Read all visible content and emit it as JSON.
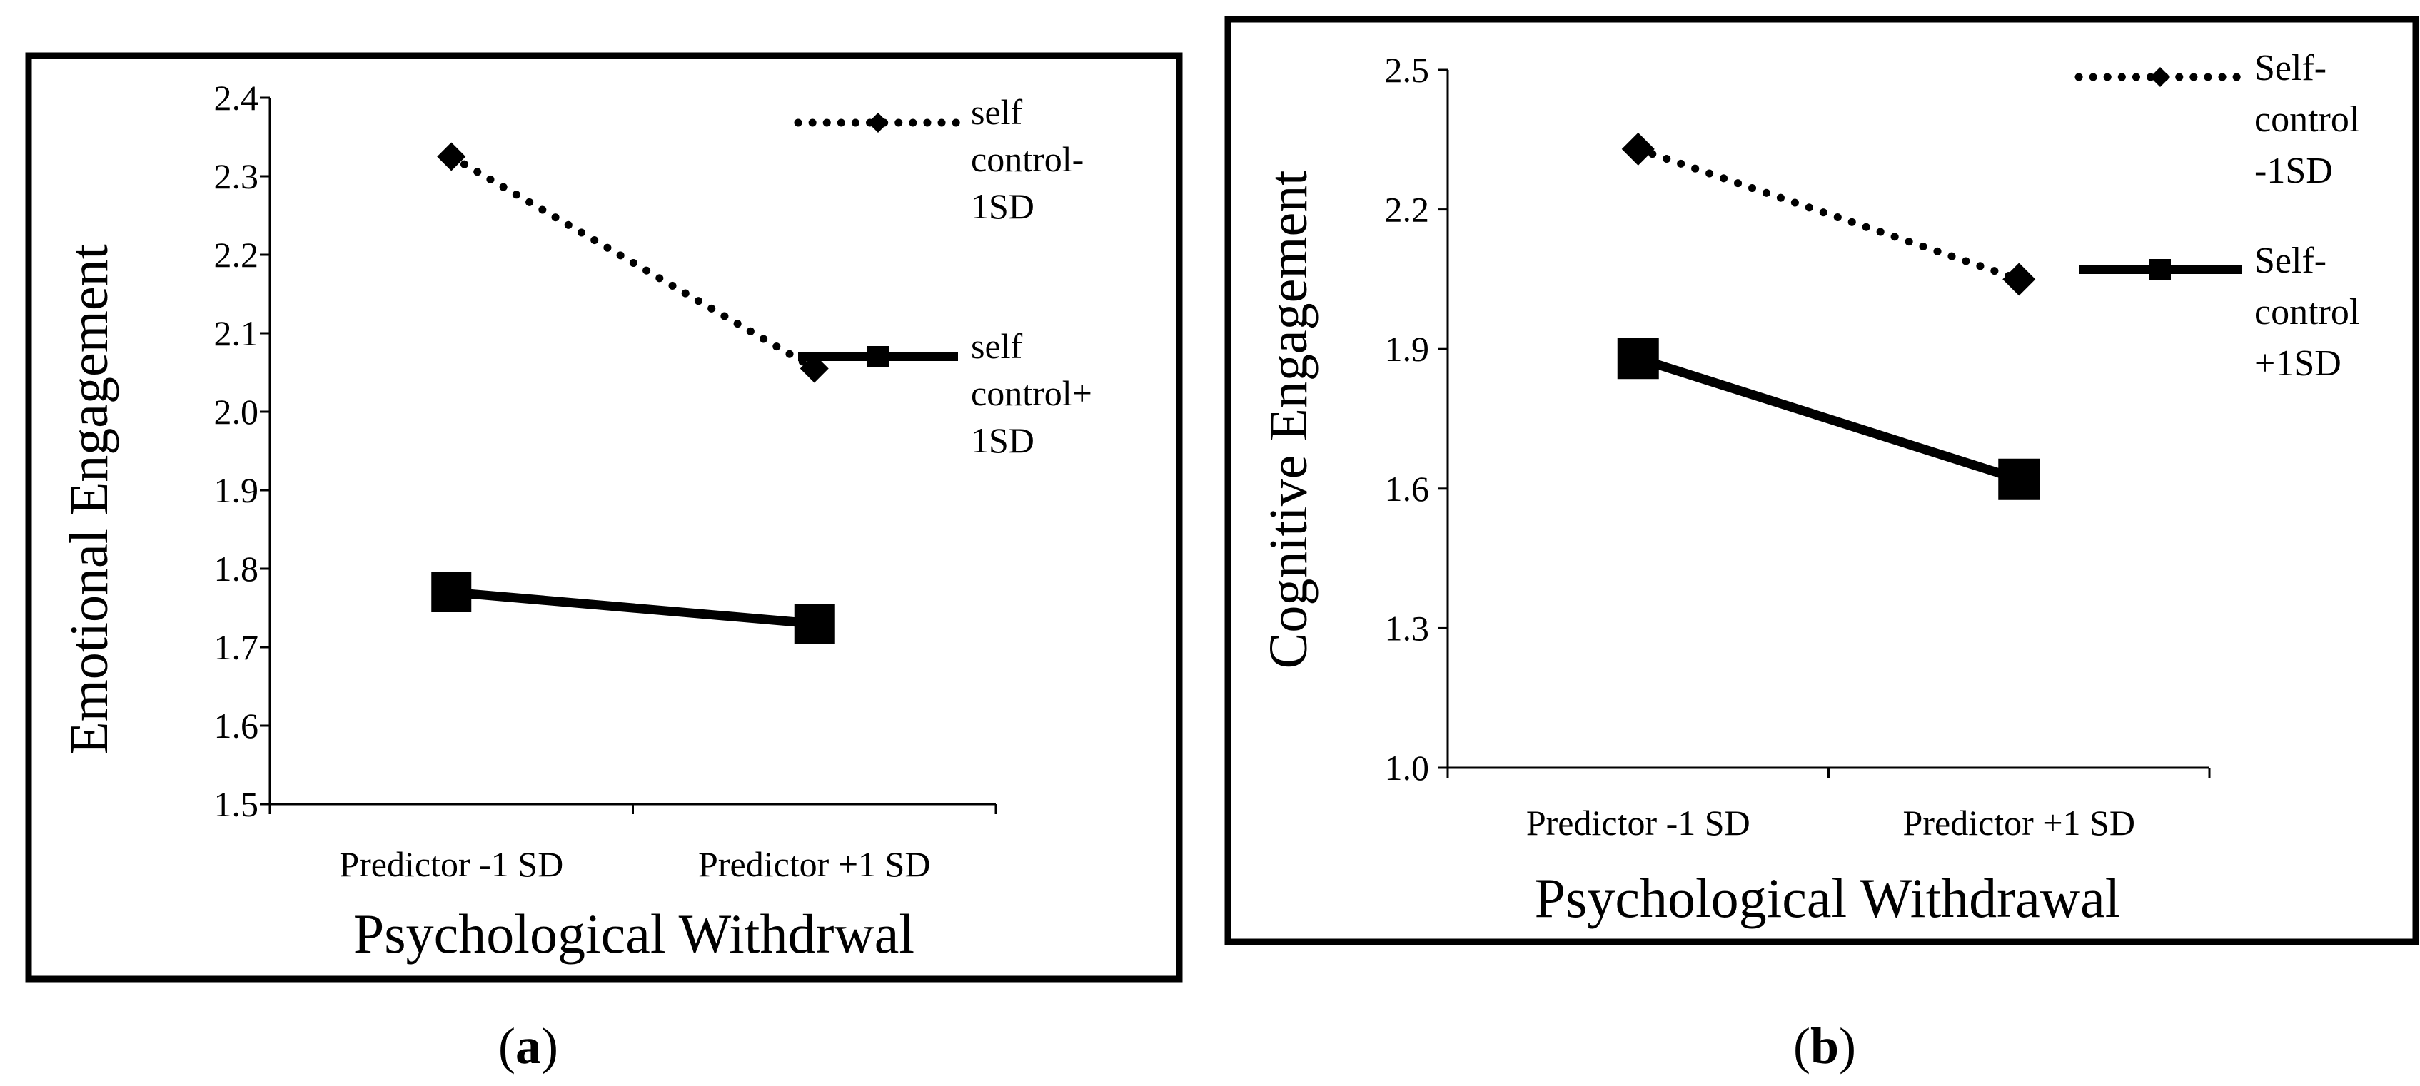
{
  "figure": {
    "panels": [
      {
        "caption_letter": "a",
        "caption_open": "(",
        "caption_close": ")",
        "tick_labels": [
          "1.5",
          "1.6",
          "1.7",
          "1.8",
          "1.9",
          "2.0",
          "2.1",
          "2.2",
          "2.3",
          "2.4"
        ],
        "legend": [
          {
            "lines": [
              "self",
              "control-",
              "1SD"
            ]
          },
          {
            "lines": [
              "self",
              "control+",
              "1SD"
            ]
          }
        ]
      },
      {
        "caption_letter": "b",
        "caption_open": "(",
        "caption_close": ")",
        "tick_labels": [
          "1.0",
          "1.3",
          "1.6",
          "1.9",
          "2.2",
          "2.5"
        ],
        "legend": [
          {
            "lines": [
              "Self-",
              "control",
              "-1SD"
            ]
          },
          {
            "lines": [
              "Self-",
              "control",
              "+1SD"
            ]
          }
        ]
      }
    ]
  },
  "chart_data": [
    {
      "type": "line",
      "title": "",
      "xlabel": "Psychological Withdrwal",
      "ylabel": "Emotional Engagement",
      "categories": [
        "Predictor -1 SD",
        "Predictor +1 SD"
      ],
      "ylim": [
        1.5,
        2.4
      ],
      "ytick_step": 0.1,
      "grid": false,
      "legend_position": "right",
      "series": [
        {
          "name": "self control-1SD",
          "values": [
            2.325,
            2.055
          ],
          "line_style": "dotted",
          "marker": "diamond",
          "color": "#000000"
        },
        {
          "name": "self control+1SD",
          "values": [
            1.77,
            1.73
          ],
          "line_style": "solid",
          "marker": "square",
          "color": "#000000"
        }
      ]
    },
    {
      "type": "line",
      "title": "",
      "xlabel": "Psychological Withdrawal",
      "ylabel": "Cognitive Engagement",
      "categories": [
        "Predictor -1 SD",
        "Predictor +1 SD"
      ],
      "ylim": [
        1.0,
        2.5
      ],
      "ytick_step": 0.3,
      "grid": false,
      "legend_position": "right",
      "series": [
        {
          "name": "Self-control -1SD",
          "values": [
            2.33,
            2.05
          ],
          "line_style": "dotted",
          "marker": "diamond",
          "color": "#000000"
        },
        {
          "name": "Self-control +1SD",
          "values": [
            1.88,
            1.62
          ],
          "line_style": "solid",
          "marker": "square",
          "color": "#000000"
        }
      ]
    }
  ]
}
